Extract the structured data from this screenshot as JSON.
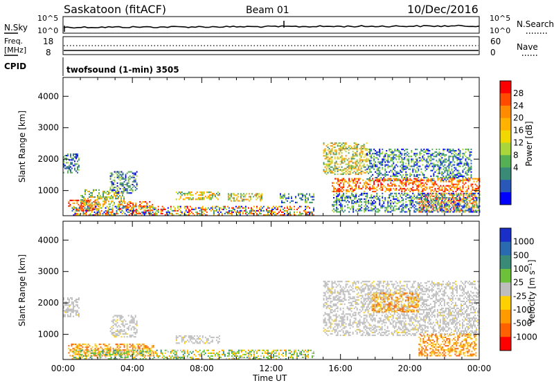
{
  "header": {
    "title": "Saskatoon (fitACF)",
    "beam": "Beam 01",
    "date": "10/Dec/2016"
  },
  "strips": {
    "nsky_label": "N.Sky",
    "nsearch_label": "N.Search",
    "noise_top_tick": "10^5",
    "noise_bottom_tick": "10^0",
    "freq_label_1": "Freq.",
    "freq_label_2": "[MHz]",
    "freq_ticks": [
      "18",
      "8"
    ],
    "nave_label": "Nave",
    "nave_ticks": [
      "60",
      "0"
    ],
    "cpid_label": "CPID",
    "cpid_text": "twofsound (1-min) 3505"
  },
  "chart_data": [
    {
      "type": "heatmap",
      "name": "Power",
      "ylabel": "Slant Range [km]",
      "xlabel": "Time UT",
      "x_ticks": [
        "00:00",
        "04:00",
        "08:00",
        "12:00",
        "16:00",
        "20:00",
        "00:00"
      ],
      "y_ticks": [
        "1000",
        "2000",
        "3000",
        "4000"
      ],
      "ylim": [
        200,
        4600
      ],
      "xlim_hours": [
        0,
        24
      ],
      "colorbar": {
        "label": "Power [dB]",
        "ticks": [
          "28",
          "24",
          "20",
          "16",
          "12",
          "8",
          "4"
        ],
        "colors": [
          "#ff0000",
          "#ff4a00",
          "#ff8c00",
          "#ffb200",
          "#f0d800",
          "#a9d63a",
          "#55b055",
          "#3a8a78",
          "#2a58b8",
          "#0000ff"
        ]
      },
      "regions": [
        {
          "t": [
            0.0,
            0.9
          ],
          "r": [
            1550,
            2150
          ],
          "level": "low"
        },
        {
          "t": [
            0.3,
            2.0
          ],
          "r": [
            350,
            700
          ],
          "level": "high"
        },
        {
          "t": [
            1.0,
            3.5
          ],
          "r": [
            500,
            1000
          ],
          "level": "mid"
        },
        {
          "t": [
            2.7,
            4.3
          ],
          "r": [
            900,
            1600
          ],
          "level": "low"
        },
        {
          "t": [
            3.2,
            5.2
          ],
          "r": [
            350,
            650
          ],
          "level": "high"
        },
        {
          "t": [
            6.5,
            9.0
          ],
          "r": [
            700,
            950
          ],
          "level": "mid"
        },
        {
          "t": [
            0.5,
            14.5
          ],
          "r": [
            200,
            480
          ],
          "level": "mixed"
        },
        {
          "t": [
            9.5,
            11.5
          ],
          "r": [
            650,
            900
          ],
          "level": "mid"
        },
        {
          "t": [
            12.5,
            14.5
          ],
          "r": [
            600,
            900
          ],
          "level": "low"
        },
        {
          "t": [
            15.0,
            17.5
          ],
          "r": [
            1500,
            2500
          ],
          "level": "mid"
        },
        {
          "t": [
            17.5,
            23.5
          ],
          "r": [
            1300,
            2300
          ],
          "level": "low"
        },
        {
          "t": [
            15.5,
            24.0
          ],
          "r": [
            950,
            1400
          ],
          "level": "high"
        },
        {
          "t": [
            20.5,
            23.8
          ],
          "r": [
            300,
            900
          ],
          "level": "high"
        },
        {
          "t": [
            15.5,
            24.0
          ],
          "r": [
            300,
            900
          ],
          "level": "low"
        }
      ]
    },
    {
      "type": "heatmap",
      "name": "Velocity",
      "ylabel": "Slant Range [km]",
      "xlabel": "Time UT",
      "x_ticks": [
        "00:00",
        "04:00",
        "08:00",
        "12:00",
        "16:00",
        "20:00",
        "00:00"
      ],
      "y_ticks": [
        "1000",
        "2000",
        "3000",
        "4000"
      ],
      "ylim": [
        200,
        4600
      ],
      "xlim_hours": [
        0,
        24
      ],
      "colorbar": {
        "label": "Velocity [m s⁻¹]",
        "ticks": [
          "1000",
          "500",
          "100",
          "25",
          "-25",
          "-100",
          "-500",
          "-1000"
        ],
        "colors": [
          "#1a2fc8",
          "#2a6ab0",
          "#3a8a78",
          "#6cc03a",
          "#bebebe",
          "#ffd000",
          "#ff9a00",
          "#ff6000",
          "#ff0000"
        ]
      },
      "regions": [
        {
          "t": [
            0.0,
            0.9
          ],
          "r": [
            1550,
            2150
          ],
          "level": "ground"
        },
        {
          "t": [
            0.3,
            5.2
          ],
          "r": [
            300,
            700
          ],
          "level": "neg"
        },
        {
          "t": [
            0.5,
            14.5
          ],
          "r": [
            200,
            480
          ],
          "level": "mixed"
        },
        {
          "t": [
            2.7,
            4.3
          ],
          "r": [
            900,
            1600
          ],
          "level": "ground"
        },
        {
          "t": [
            6.5,
            9.0
          ],
          "r": [
            700,
            950
          ],
          "level": "ground"
        },
        {
          "t": [
            15.0,
            24.0
          ],
          "r": [
            950,
            2700
          ],
          "level": "ground"
        },
        {
          "t": [
            17.8,
            20.5
          ],
          "r": [
            1700,
            2300
          ],
          "level": "neg"
        },
        {
          "t": [
            20.5,
            23.8
          ],
          "r": [
            300,
            1000
          ],
          "level": "neg"
        }
      ]
    }
  ]
}
